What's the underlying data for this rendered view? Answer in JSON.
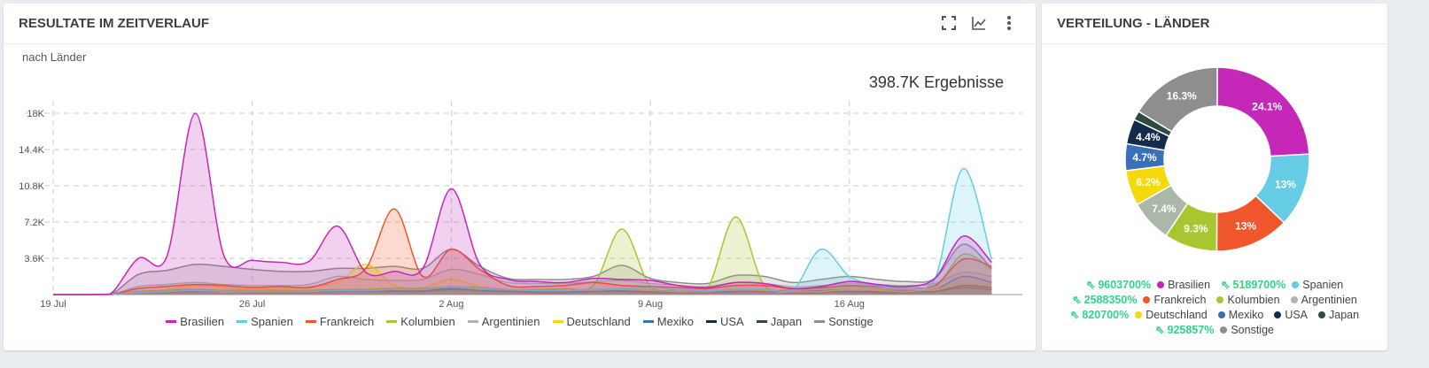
{
  "left": {
    "title": "RESULTATE IM ZEITVERLAUF",
    "subtitle": "nach Länder",
    "total": "398.7K Ergebnisse",
    "icons": [
      "fullscreen-icon",
      "line-chart-icon",
      "more-vert-icon"
    ]
  },
  "right": {
    "title": "VERTEILUNG - LÄNDER"
  },
  "chart_data": [
    {
      "type": "area",
      "title": "Resultate im Zeitverlauf",
      "start_date": "2019-07-19",
      "ylim": [
        0,
        19500
      ],
      "yticks": [
        {
          "v": 3600,
          "l": "3.6K"
        },
        {
          "v": 7200,
          "l": "7.2K"
        },
        {
          "v": 10800,
          "l": "10.8K"
        },
        {
          "v": 14400,
          "l": "14.4K"
        },
        {
          "v": 18000,
          "l": "18K"
        }
      ],
      "xticks": [
        {
          "d": 0,
          "l": "19 Jul"
        },
        {
          "d": 7,
          "l": "26 Jul"
        },
        {
          "d": 14,
          "l": "2 Aug"
        },
        {
          "d": 21,
          "l": "9 Aug"
        },
        {
          "d": 28,
          "l": "16 Aug"
        }
      ],
      "series": [
        {
          "name": "Brasilien",
          "color": "#c527b9",
          "values": [
            0,
            0,
            50,
            3600,
            3800,
            18000,
            3900,
            3400,
            3200,
            3300,
            6800,
            2200,
            2300,
            2600,
            10500,
            3000,
            1500,
            1300,
            1200,
            1600,
            1500,
            1400,
            900,
            700,
            1200,
            1100,
            600,
            800,
            1300,
            1000,
            800,
            1600,
            5800,
            3200
          ]
        },
        {
          "name": "Spanien",
          "color": "#66cce6",
          "values": [
            0,
            0,
            0,
            200,
            300,
            400,
            300,
            300,
            300,
            300,
            400,
            400,
            500,
            500,
            800,
            600,
            500,
            400,
            400,
            500,
            600,
            700,
            500,
            400,
            500,
            500,
            400,
            4500,
            1800,
            900,
            700,
            1500,
            12500,
            3500
          ]
        },
        {
          "name": "Frankreich",
          "color": "#f0562b",
          "values": [
            0,
            0,
            0,
            600,
            800,
            1000,
            900,
            700,
            800,
            700,
            1500,
            2600,
            8500,
            1800,
            4500,
            2500,
            900,
            800,
            900,
            1200,
            900,
            800,
            700,
            600,
            900,
            900,
            600,
            700,
            900,
            800,
            700,
            900,
            3500,
            2800
          ]
        },
        {
          "name": "Kolumbien",
          "color": "#a8c62f",
          "values": [
            0,
            0,
            0,
            300,
            400,
            500,
            400,
            400,
            400,
            400,
            500,
            500,
            600,
            600,
            800,
            700,
            500,
            500,
            600,
            900,
            6500,
            800,
            500,
            600,
            7700,
            900,
            500,
            600,
            800,
            600,
            500,
            700,
            4000,
            2500
          ]
        },
        {
          "name": "Argentinien",
          "color": "#a9b8a9",
          "values": [
            0,
            0,
            0,
            800,
            1000,
            1200,
            1000,
            900,
            900,
            1000,
            1800,
            1500,
            1400,
            1500,
            2500,
            2000,
            1200,
            1100,
            1100,
            1300,
            1400,
            1100,
            900,
            800,
            1200,
            1100,
            800,
            900,
            1100,
            1000,
            900,
            1100,
            2200,
            1800
          ]
        },
        {
          "name": "Deutschland",
          "color": "#f5d90a",
          "values": [
            0,
            0,
            0,
            300,
            500,
            900,
            700,
            500,
            600,
            800,
            1200,
            3000,
            900,
            700,
            1500,
            800,
            500,
            400,
            400,
            500,
            500,
            400,
            300,
            300,
            500,
            400,
            300,
            300,
            500,
            400,
            300,
            500,
            1200,
            800
          ]
        },
        {
          "name": "Mexiko",
          "color": "#3a70b8",
          "values": [
            0,
            0,
            0,
            300,
            400,
            500,
            400,
            400,
            400,
            400,
            500,
            500,
            600,
            500,
            800,
            600,
            400,
            400,
            400,
            500,
            500,
            400,
            300,
            300,
            500,
            400,
            300,
            400,
            500,
            400,
            400,
            500,
            1800,
            1200
          ]
        },
        {
          "name": "USA",
          "color": "#142b4e",
          "values": [
            0,
            0,
            0,
            200,
            300,
            300,
            300,
            300,
            300,
            300,
            400,
            400,
            400,
            400,
            600,
            400,
            300,
            300,
            300,
            300,
            400,
            300,
            200,
            200,
            300,
            300,
            200,
            300,
            300,
            300,
            300,
            300,
            900,
            700
          ]
        },
        {
          "name": "Japan",
          "color": "#2f4a3f",
          "values": [
            0,
            0,
            0,
            200,
            200,
            300,
            300,
            200,
            200,
            200,
            300,
            300,
            300,
            300,
            500,
            400,
            300,
            200,
            200,
            300,
            300,
            200,
            200,
            200,
            300,
            300,
            200,
            200,
            300,
            200,
            200,
            300,
            700,
            500
          ]
        },
        {
          "name": "Sonstige",
          "color": "#8e8e8e",
          "values": [
            0,
            0,
            0,
            2000,
            2400,
            3000,
            2800,
            2500,
            2300,
            2300,
            2600,
            2600,
            2800,
            2600,
            4500,
            2800,
            1600,
            1500,
            1500,
            1800,
            2900,
            1600,
            1200,
            1100,
            1900,
            1800,
            1200,
            1500,
            1800,
            1500,
            1300,
            1600,
            5000,
            2600
          ]
        }
      ]
    },
    {
      "type": "pie",
      "title": "Verteilung - Länder",
      "slices": [
        {
          "name": "Brasilien",
          "value": 24.1,
          "label": "24.1%",
          "color": "#c527b9",
          "change": "9603700%"
        },
        {
          "name": "Spanien",
          "value": 13,
          "label": "13%",
          "color": "#66cce6",
          "change": "5189700%"
        },
        {
          "name": "Frankreich",
          "value": 13,
          "label": "13%",
          "color": "#f0562b",
          "change": "2588350%"
        },
        {
          "name": "Kolumbien",
          "value": 9.3,
          "label": "9.3%",
          "color": "#a8c62f",
          "change": null
        },
        {
          "name": "Argentinien",
          "value": 7.4,
          "label": "7.4%",
          "color": "#a9b8a9",
          "change": null
        },
        {
          "name": "Deutschland",
          "value": 6.2,
          "label": "6.2%",
          "color": "#f5d90a",
          "change": "820700%"
        },
        {
          "name": "Mexiko",
          "value": 4.7,
          "label": "4.7%",
          "color": "#3a70b8",
          "change": null
        },
        {
          "name": "USA",
          "value": 4.4,
          "label": "4.4%",
          "color": "#142b4e",
          "change": null
        },
        {
          "name": "Japan",
          "value": 1.6,
          "label": "",
          "color": "#2f4a3f",
          "change": null
        },
        {
          "name": "Sonstige",
          "value": 16.3,
          "label": "16.3%",
          "color": "#8e8e8e",
          "change": "925857%"
        }
      ]
    }
  ]
}
